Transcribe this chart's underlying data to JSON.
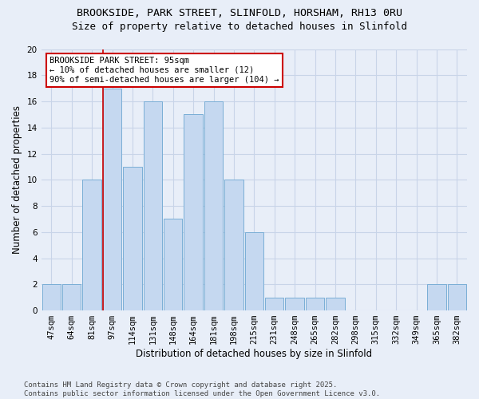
{
  "title1": "BROOKSIDE, PARK STREET, SLINFOLD, HORSHAM, RH13 0RU",
  "title2": "Size of property relative to detached houses in Slinfold",
  "xlabel": "Distribution of detached houses by size in Slinfold",
  "ylabel": "Number of detached properties",
  "bar_labels": [
    "47sqm",
    "64sqm",
    "81sqm",
    "97sqm",
    "114sqm",
    "131sqm",
    "148sqm",
    "164sqm",
    "181sqm",
    "198sqm",
    "215sqm",
    "231sqm",
    "248sqm",
    "265sqm",
    "282sqm",
    "298sqm",
    "315sqm",
    "332sqm",
    "349sqm",
    "365sqm",
    "382sqm"
  ],
  "bar_values": [
    2,
    2,
    10,
    17,
    11,
    16,
    7,
    15,
    16,
    10,
    6,
    1,
    1,
    1,
    1,
    0,
    0,
    0,
    0,
    2,
    2
  ],
  "bar_color": "#c5d8f0",
  "bar_edgecolor": "#7aaed6",
  "red_line_index": 3,
  "annotation_title": "BROOKSIDE PARK STREET: 95sqm",
  "annotation_line1": "← 10% of detached houses are smaller (12)",
  "annotation_line2": "90% of semi-detached houses are larger (104) →",
  "annotation_box_color": "#ffffff",
  "annotation_box_edgecolor": "#cc0000",
  "red_line_color": "#cc0000",
  "ylim": [
    0,
    20
  ],
  "yticks": [
    0,
    2,
    4,
    6,
    8,
    10,
    12,
    14,
    16,
    18,
    20
  ],
  "grid_color": "#c8d4e8",
  "bg_color": "#e8eef8",
  "footer_text": "Contains HM Land Registry data © Crown copyright and database right 2025.\nContains public sector information licensed under the Open Government Licence v3.0.",
  "title_fontsize": 9.5,
  "subtitle_fontsize": 9,
  "axis_label_fontsize": 8.5,
  "tick_fontsize": 7.5,
  "annotation_fontsize": 7.5,
  "footer_fontsize": 6.5
}
